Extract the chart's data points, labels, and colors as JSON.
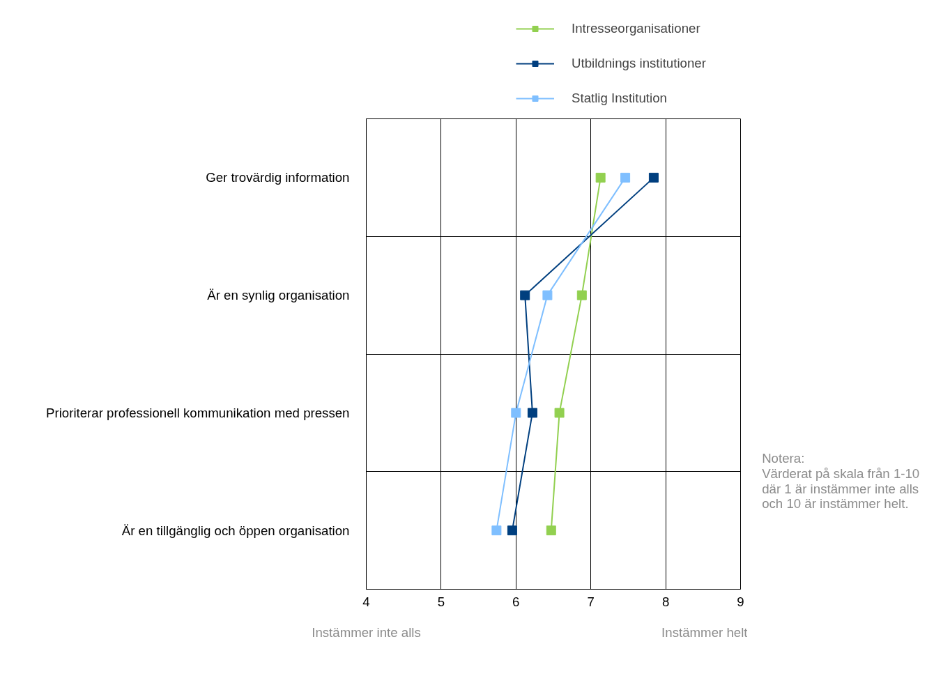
{
  "chart_data": {
    "type": "line",
    "orientation": "horizontal",
    "categories": [
      "Ger trovärdig information",
      "Är en synlig organisation",
      "Prioriterar professionell kommunikation med pressen",
      "Är en tillgänglig och öppen organisation"
    ],
    "series": [
      {
        "name": "Intresseorganisationer",
        "color": "#92d050",
        "values": [
          7.13,
          6.88,
          6.58,
          6.47
        ]
      },
      {
        "name": "Utbildnings institutioner",
        "color": "#003f7f",
        "values": [
          7.84,
          6.12,
          6.22,
          5.95
        ]
      },
      {
        "name": "Statlig Institution",
        "color": "#7fbfff",
        "values": [
          7.46,
          6.42,
          6.0,
          5.74
        ]
      }
    ],
    "xlim": [
      4,
      9
    ],
    "xticks": [
      4,
      5,
      6,
      7,
      8,
      9
    ],
    "grid": true,
    "legend": "top",
    "marker": "square",
    "line_style": "solid",
    "annotations": [
      "Instämmer inte alls",
      "Instämmer helt",
      "Notera:",
      "Värderat på skala från 1-10 där 1 är instämmer inte alls och 10 är instämmer helt."
    ]
  }
}
